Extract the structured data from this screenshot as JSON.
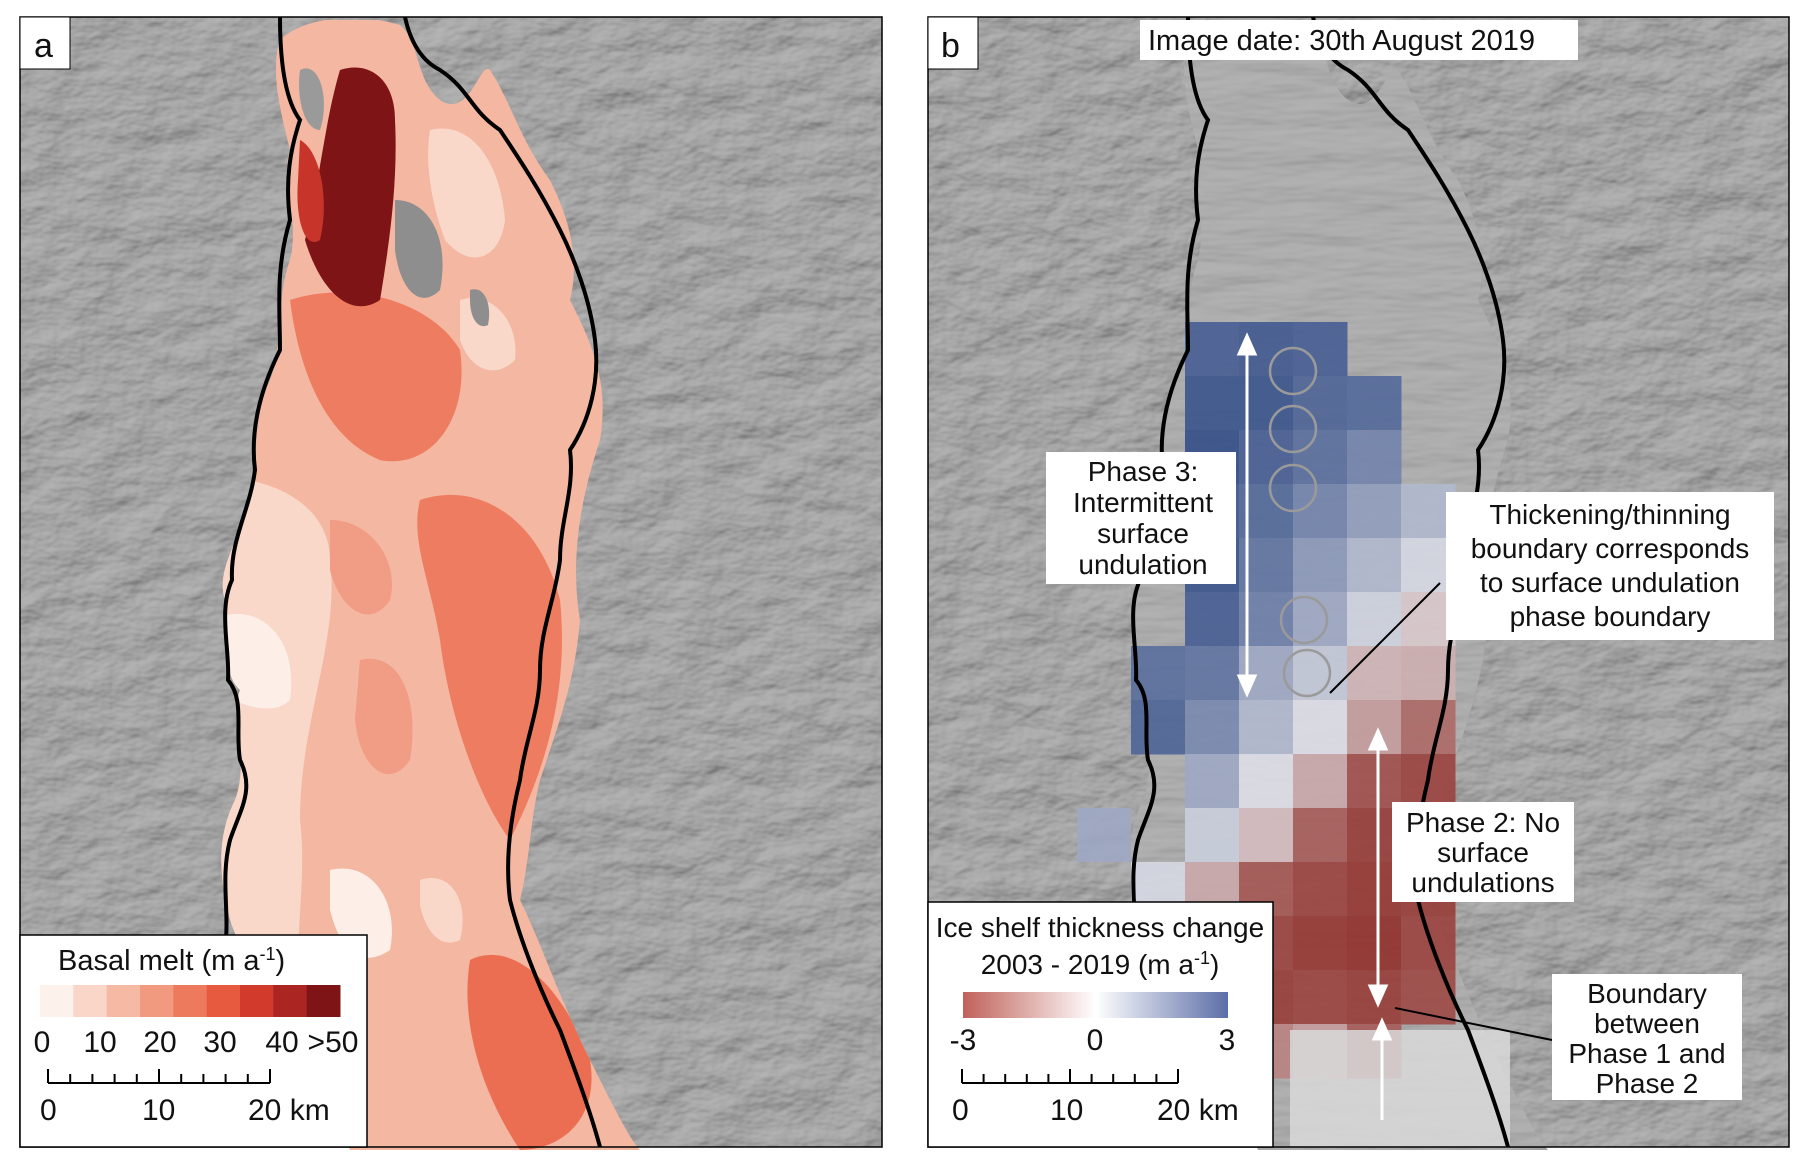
{
  "panel_a": {
    "letter": "a",
    "legend": {
      "title": "Basal melt (m a",
      "title_sup": "-1",
      "title_end": ")",
      "ticks": [
        "0",
        "10",
        "20",
        "30",
        "40",
        ">50"
      ],
      "colors": [
        "#fdf1ec",
        "#f9d6c8",
        "#f5b9a4",
        "#f29a80",
        "#ee7a5d",
        "#e85a3f",
        "#d23a2c",
        "#ab2522",
        "#7e1416"
      ],
      "scale_ticks": [
        "0",
        "10",
        "20 km"
      ]
    }
  },
  "panel_b": {
    "letter": "b",
    "image_date": "Image date: 30th August 2019",
    "phase3": [
      "Phase 3:",
      "Intermittent",
      "surface",
      "undulation"
    ],
    "boundary_note": [
      "Thickening/thinning",
      "boundary corresponds",
      "to surface undulation",
      "phase boundary"
    ],
    "phase2": [
      "Phase 2: No",
      "surface",
      "undulations"
    ],
    "boundary12": [
      "Boundary",
      "between",
      "Phase 1 and",
      "Phase 2"
    ],
    "legend": {
      "title_line1": "Ice shelf thickness change",
      "title_line2": "2003 - 2019 (m a",
      "title_sup": "-1",
      "title_end": ")",
      "ticks": [
        "-3",
        "0",
        "3"
      ],
      "colors": [
        "#c0615a",
        "#ffffff",
        "#5c6ea8"
      ],
      "scale_ticks": [
        "0",
        "10",
        "20 km"
      ]
    }
  },
  "colors": {
    "background_gray": "#8f8f8f",
    "ice_outline": "#000000",
    "thickening_blue": "#3b5793",
    "thinning_red": "#a2312b"
  }
}
